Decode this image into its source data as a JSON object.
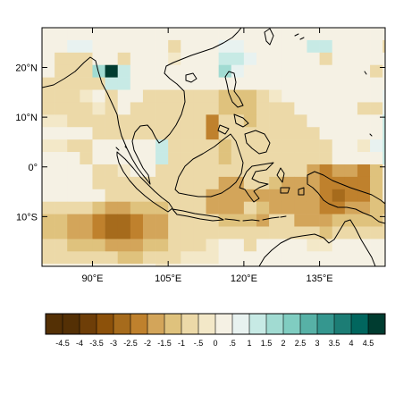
{
  "chart_data": {
    "type": "heatmap",
    "title": "",
    "xlabel": "",
    "ylabel": "",
    "xlim": [
      80,
      148
    ],
    "ylim": [
      -20,
      28
    ],
    "grid": false,
    "x_ticks": [
      {
        "value": 90,
        "label": "90°E"
      },
      {
        "value": 105,
        "label": "105°E"
      },
      {
        "value": 120,
        "label": "120°E"
      },
      {
        "value": 135,
        "label": "135°E"
      }
    ],
    "y_ticks": [
      {
        "value": 20,
        "label": "20°N"
      },
      {
        "value": 10,
        "label": "10°N"
      },
      {
        "value": 0,
        "label": "0°"
      },
      {
        "value": -10,
        "label": "10°S"
      }
    ],
    "cell_size_deg": 2.5,
    "grid_origin": {
      "lon": 80,
      "lat": 28
    },
    "grid_values": [
      [
        0,
        0,
        0,
        0,
        0,
        0,
        0,
        0,
        0,
        0,
        0,
        0,
        0,
        0,
        0,
        0,
        0,
        0,
        0,
        0,
        0,
        0,
        0,
        0,
        0,
        0,
        0,
        0
      ],
      [
        0,
        0,
        0.5,
        0.5,
        0,
        0,
        0,
        0,
        0,
        0,
        -1,
        0,
        0,
        0,
        0.5,
        0.5,
        0,
        0,
        0,
        0,
        0,
        1,
        1,
        0,
        0,
        0,
        0,
        -1
      ],
      [
        0,
        -1,
        -1,
        -1,
        0,
        0,
        -1,
        0,
        0,
        0,
        -0.5,
        0,
        0,
        0,
        1,
        1,
        0.5,
        0,
        0,
        0,
        0,
        0,
        -1,
        0,
        0,
        0,
        0,
        0
      ],
      [
        0,
        -1,
        -1,
        -1,
        1.5,
        4.5,
        1,
        0,
        0,
        0,
        0,
        0,
        0,
        0,
        1.5,
        0.5,
        0,
        0,
        0,
        0,
        0,
        0,
        0,
        0,
        0,
        0,
        -1,
        0
      ],
      [
        -1,
        -1,
        -1,
        -1,
        -1,
        1,
        1,
        0,
        0,
        0,
        0,
        0,
        0,
        0,
        0,
        0,
        0,
        0,
        0,
        0,
        0,
        0,
        0,
        0,
        0,
        0,
        0,
        0
      ],
      [
        -1,
        -1,
        -1,
        -0.5,
        0,
        -1,
        0,
        0,
        -1,
        -1,
        -1,
        -1,
        -1,
        -1,
        -1.5,
        -1.5,
        -1.5,
        -1,
        -0.5,
        0,
        0,
        0,
        0,
        0,
        0,
        0,
        0,
        0.5
      ],
      [
        -1,
        -1,
        -1,
        -1,
        -0.5,
        -1,
        0,
        -1,
        -1,
        -1,
        -1,
        -1,
        -1,
        -1,
        -1.5,
        -1.5,
        -1.5,
        -1,
        -1,
        -1,
        0,
        0,
        0,
        0,
        0,
        -1,
        -1,
        0.5
      ],
      [
        -0.5,
        -0.5,
        -1,
        -1,
        -1,
        -1,
        -1,
        -1,
        -1,
        -1,
        -1,
        -1,
        -1,
        -2.5,
        -1,
        -1,
        -1.5,
        -1,
        -1,
        -1,
        -1,
        0,
        0,
        0,
        0,
        0,
        0,
        1
      ],
      [
        0,
        0,
        0,
        0,
        -1,
        -1,
        -1,
        -1,
        -1,
        -1,
        -1,
        -1,
        -1,
        -2.5,
        -1,
        -1,
        -1,
        -1,
        -1,
        -1,
        -1,
        -1,
        0,
        0,
        0,
        0,
        0,
        1
      ],
      [
        -0.5,
        -0.5,
        -1,
        -1,
        0,
        0,
        0,
        0,
        0,
        1,
        -1,
        -1,
        -1,
        -1,
        -1.5,
        -1,
        -1,
        -1,
        -1,
        -1,
        -1,
        -1,
        -1,
        0,
        0,
        -0.5,
        0.5,
        1
      ],
      [
        0,
        0,
        0,
        -1,
        0,
        0,
        0,
        0,
        0,
        1,
        -1,
        -1,
        -1,
        -1,
        -1.5,
        -1,
        -1,
        -1,
        -1,
        -1,
        -1,
        -1,
        -1,
        0,
        0,
        0,
        0,
        1
      ],
      [
        0,
        0,
        0,
        0,
        -1,
        -1,
        -0.5,
        0,
        0,
        -1,
        -1,
        -1,
        -1,
        -1,
        -1,
        -1,
        -1,
        -1,
        -1,
        -1,
        -1,
        -2,
        -2.5,
        -2,
        -2,
        -2.5,
        -1.5,
        0
      ],
      [
        0,
        0,
        0,
        0,
        -1,
        -1,
        -1,
        -1,
        -1,
        -1,
        -1,
        -1,
        -1,
        -1,
        -2,
        -2,
        -1,
        -1,
        -1.5,
        -2,
        -2,
        -2,
        -2.5,
        -2.5,
        -2.5,
        -2.5,
        -1.5,
        0
      ],
      [
        0,
        0,
        0,
        0,
        0,
        -1,
        -1,
        -1,
        -1,
        -1,
        -1,
        -1,
        -1,
        -2,
        -2,
        -2,
        -2,
        -2,
        -2,
        -2,
        -2,
        -2,
        -2.5,
        -3,
        -2.5,
        -2.5,
        -1.5,
        0
      ],
      [
        -1,
        -1,
        -1,
        -1,
        -1.5,
        -2,
        -2,
        -1.5,
        -1.5,
        -1.5,
        -1,
        -1,
        -1,
        -2,
        -2,
        -2,
        -1,
        -1.5,
        -2,
        -2,
        -2,
        -2,
        -2.5,
        -2.5,
        -2,
        -2,
        -1.5,
        -1.5
      ],
      [
        -1.5,
        -1.5,
        -2,
        -2,
        -2.5,
        -3,
        -3,
        -2.5,
        -2,
        -2,
        -1,
        -1,
        -1,
        -1,
        -1.5,
        -1.5,
        -1.5,
        -2,
        -1,
        -1,
        -2,
        -2,
        -2,
        -1.5,
        -1.5,
        -1.5,
        -1.5,
        -1
      ],
      [
        -1.5,
        -1.5,
        -2,
        -2,
        -2.5,
        -3,
        -3,
        -2.5,
        -2,
        -2,
        -1,
        -1,
        -1,
        -1,
        -1,
        -1,
        -1,
        -1,
        -1,
        -1,
        -1,
        -1,
        -1.5,
        -1,
        -1,
        -1,
        -1,
        -1
      ],
      [
        -1,
        -1,
        -1.5,
        -1.5,
        -1.5,
        -2,
        -2,
        -2,
        -1.5,
        -1.5,
        -1,
        -1,
        -1,
        -0.5,
        0,
        0,
        -1,
        0,
        0,
        0,
        0,
        -0.5,
        -0.5,
        0,
        0,
        0,
        0,
        0
      ],
      [
        -1,
        -1,
        -1,
        -1,
        -1,
        -1,
        -1.5,
        -1.5,
        -1,
        -1,
        -1,
        -0.5,
        -0.5,
        -0.5,
        0,
        0,
        0,
        0,
        0,
        0,
        0,
        0,
        0,
        0,
        0,
        0,
        0,
        0
      ],
      [
        0,
        0,
        0,
        0,
        0,
        0,
        0,
        0,
        0,
        -0.5,
        0,
        0,
        0,
        0,
        0,
        0,
        0,
        0,
        0,
        0,
        0,
        0,
        0,
        0,
        0,
        0,
        0,
        0
      ]
    ],
    "colorbar": {
      "labels": [
        "-4.5",
        "-4",
        "-3.5",
        "-3",
        "-2.5",
        "-2",
        "-1.5",
        "-1",
        "-.5",
        "0",
        ".5",
        "1",
        "1.5",
        "2",
        "2.5",
        "3",
        "3.5",
        "4",
        "4.5"
      ],
      "colors": [
        "#543005",
        "#6e3e08",
        "#8c510a",
        "#a66b1c",
        "#bf812d",
        "#d3a55a",
        "#dfc27d",
        "#ecd9a8",
        "#f3e8c8",
        "#f5f1e4",
        "#e8f2f0",
        "#c7eae5",
        "#a1dbd2",
        "#80cdc1",
        "#57b1a6",
        "#35978f",
        "#1c7d75",
        "#01665e",
        "#003c30"
      ]
    },
    "coastline_color": "#000000"
  }
}
